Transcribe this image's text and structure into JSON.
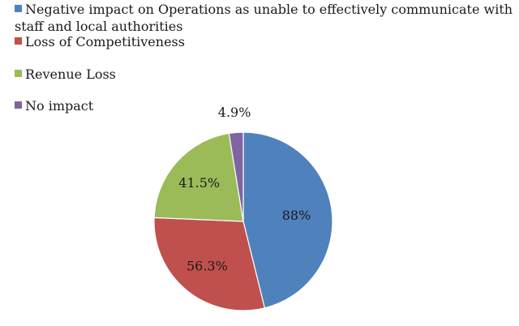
{
  "chart_data": {
    "type": "pie",
    "title": "",
    "legend_position": "top-left",
    "series": [
      {
        "name": "Negative impact on Operations as unable to effectively communicate with staff and local authorities",
        "value": 88,
        "label": "88%",
        "color": "#4F81BD"
      },
      {
        "name": "Loss of Competitiveness",
        "value": 56.3,
        "label": "56.3%",
        "color": "#C0504D"
      },
      {
        "name": "Revenue Loss",
        "value": 41.5,
        "label": "41.5%",
        "color": "#9BBB59"
      },
      {
        "name": "No impact",
        "value": 4.9,
        "label": "4.9%",
        "color": "#8064A2"
      }
    ]
  }
}
